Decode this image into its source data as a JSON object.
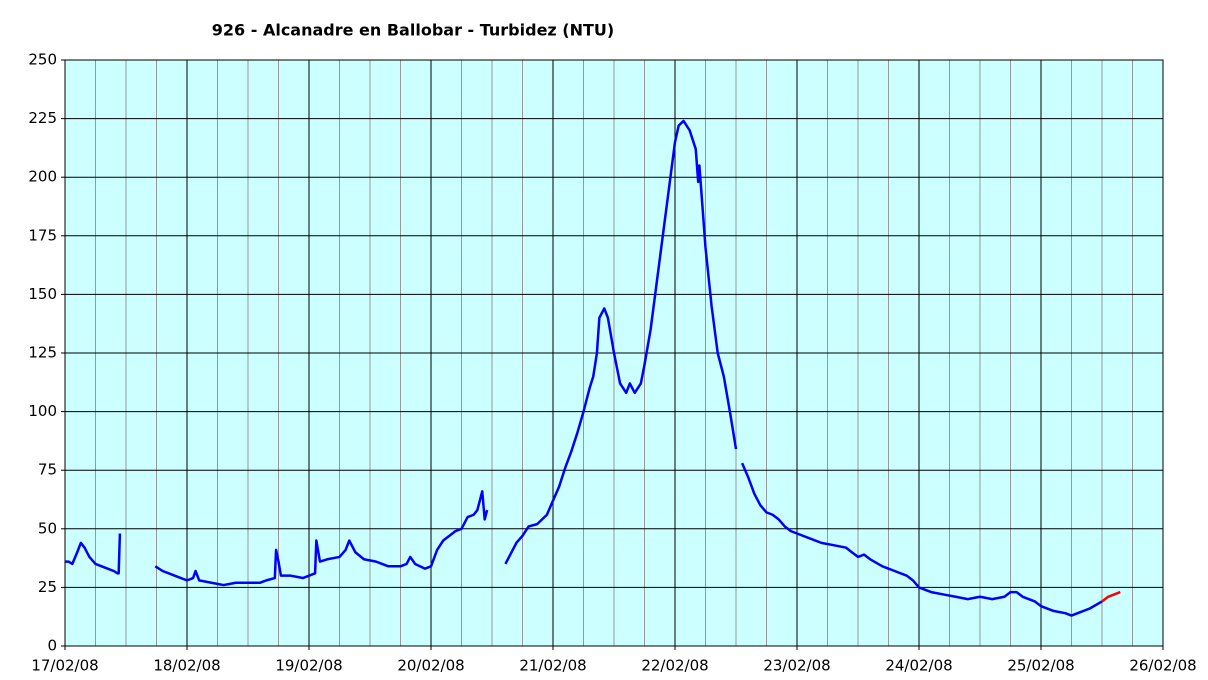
{
  "chart_data": {
    "type": "line",
    "title": "926 - Alcanadre en Ballobar - Turbidez (NTU)",
    "xlim": [
      0,
      9
    ],
    "xticks": [
      {
        "value": 0,
        "label": "17/02/08"
      },
      {
        "value": 1,
        "label": "18/02/08"
      },
      {
        "value": 2,
        "label": "19/02/08"
      },
      {
        "value": 3,
        "label": "20/02/08"
      },
      {
        "value": 4,
        "label": "21/02/08"
      },
      {
        "value": 5,
        "label": "22/02/08"
      },
      {
        "value": 6,
        "label": "23/02/08"
      },
      {
        "value": 7,
        "label": "24/02/08"
      },
      {
        "value": 8,
        "label": "25/02/08"
      },
      {
        "value": 9,
        "label": "26/02/08"
      }
    ],
    "ylim": [
      0,
      250
    ],
    "yticks": [
      0,
      25,
      50,
      75,
      100,
      125,
      150,
      175,
      200,
      225,
      250
    ],
    "grid": true,
    "background": "#ccffff",
    "x": [
      0,
      0.03,
      0.06,
      0.1,
      0.13,
      0.16,
      0.2,
      0.25,
      0.3,
      0.35,
      0.4,
      0.43,
      0.44,
      0.45,
      0.6,
      0.74,
      0.8,
      0.85,
      0.9,
      0.95,
      1,
      1.05,
      1.07,
      1.1,
      1.2,
      1.3,
      1.4,
      1.5,
      1.6,
      1.65,
      1.72,
      1.73,
      1.75,
      1.77,
      1.85,
      1.95,
      2,
      2.05,
      2.06,
      2.09,
      2.15,
      2.25,
      2.3,
      2.33,
      2.38,
      2.45,
      2.55,
      2.65,
      2.75,
      2.8,
      2.83,
      2.87,
      2.95,
      3,
      3.05,
      3.1,
      3.15,
      3.2,
      3.25,
      3.3,
      3.35,
      3.38,
      3.4,
      3.42,
      3.44,
      3.46,
      3.55,
      3.61,
      3.65,
      3.7,
      3.75,
      3.8,
      3.87,
      3.95,
      4,
      4.05,
      4.1,
      4.15,
      4.2,
      4.25,
      4.3,
      4.33,
      4.36,
      4.38,
      4.42,
      4.45,
      4.5,
      4.55,
      4.6,
      4.63,
      4.67,
      4.72,
      4.75,
      4.8,
      4.85,
      4.9,
      4.95,
      5,
      5.03,
      5.07,
      5.12,
      5.17,
      5.19,
      5.2,
      5.25,
      5.3,
      5.35,
      5.4,
      5.45,
      5.5,
      5.52,
      5.55,
      5.6,
      5.65,
      5.7,
      5.75,
      5.8,
      5.85,
      5.9,
      5.95,
      6,
      6.1,
      6.2,
      6.3,
      6.4,
      6.45,
      6.5,
      6.55,
      6.6,
      6.7,
      6.8,
      6.9,
      6.95,
      7,
      7.1,
      7.2,
      7.3,
      7.4,
      7.5,
      7.6,
      7.7,
      7.75,
      7.8,
      7.85,
      7.95,
      8,
      8.1,
      8.2,
      8.25,
      8.3,
      8.4,
      8.5,
      8.55,
      8.6,
      8.65
    ],
    "series": [
      {
        "color": "#0000ff",
        "values": [
          36,
          36,
          35,
          40,
          44,
          42,
          38,
          35,
          34,
          33,
          32,
          31,
          31,
          48,
          null,
          34,
          32,
          31,
          30,
          29,
          28,
          29,
          32,
          28,
          27,
          26,
          27,
          27,
          27,
          28,
          29,
          41,
          36,
          30,
          30,
          29,
          30,
          31,
          45,
          36,
          37,
          38,
          41,
          45,
          40,
          37,
          36,
          34,
          34,
          35,
          38,
          35,
          33,
          34,
          41,
          45,
          47,
          49,
          50,
          55,
          56,
          58,
          62,
          66,
          54,
          58,
          null,
          35,
          39,
          44,
          47,
          51,
          52,
          56,
          62,
          68,
          76,
          83,
          91,
          100,
          110,
          115,
          125,
          140,
          144,
          140,
          125,
          112,
          108,
          112,
          108,
          112,
          120,
          135,
          155,
          175,
          195,
          215,
          222,
          224,
          220,
          212,
          198,
          205,
          170,
          145,
          125,
          115,
          100,
          84,
          null,
          78,
          72,
          65,
          60,
          57,
          56,
          54,
          51,
          49,
          48,
          46,
          44,
          43,
          42,
          40,
          38,
          39,
          37,
          34,
          32,
          30,
          28,
          25,
          23,
          22,
          21,
          20,
          21,
          20,
          21,
          23,
          23,
          21,
          19,
          17,
          15,
          14,
          13,
          14,
          16,
          19,
          null,
          null,
          null
        ]
      },
      {
        "color": "#ff0000",
        "values": [
          null,
          null,
          null,
          null,
          null,
          null,
          null,
          null,
          null,
          null,
          null,
          null,
          null,
          null,
          null,
          null,
          null,
          null,
          null,
          null,
          null,
          null,
          null,
          null,
          null,
          null,
          null,
          null,
          null,
          null,
          null,
          null,
          null,
          null,
          null,
          null,
          null,
          null,
          null,
          null,
          null,
          null,
          null,
          null,
          null,
          null,
          null,
          null,
          null,
          null,
          null,
          null,
          null,
          null,
          null,
          null,
          null,
          null,
          null,
          null,
          null,
          null,
          null,
          null,
          null,
          null,
          null,
          null,
          null,
          null,
          null,
          null,
          null,
          null,
          null,
          null,
          null,
          null,
          null,
          null,
          null,
          null,
          null,
          null,
          null,
          null,
          null,
          null,
          null,
          null,
          null,
          null,
          null,
          null,
          null,
          null,
          null,
          null,
          null,
          null,
          null,
          null,
          null,
          null,
          null,
          null,
          null,
          null,
          null,
          null,
          null,
          null,
          null,
          null,
          null,
          null,
          null,
          null,
          null,
          null,
          null,
          null,
          null,
          null,
          null,
          null,
          null,
          null,
          null,
          null,
          null,
          null,
          null,
          null,
          null,
          null,
          null,
          null,
          null,
          null,
          null,
          null,
          null,
          null,
          null,
          null,
          null,
          null,
          null,
          null,
          null,
          19,
          21,
          22,
          23
        ]
      }
    ]
  }
}
